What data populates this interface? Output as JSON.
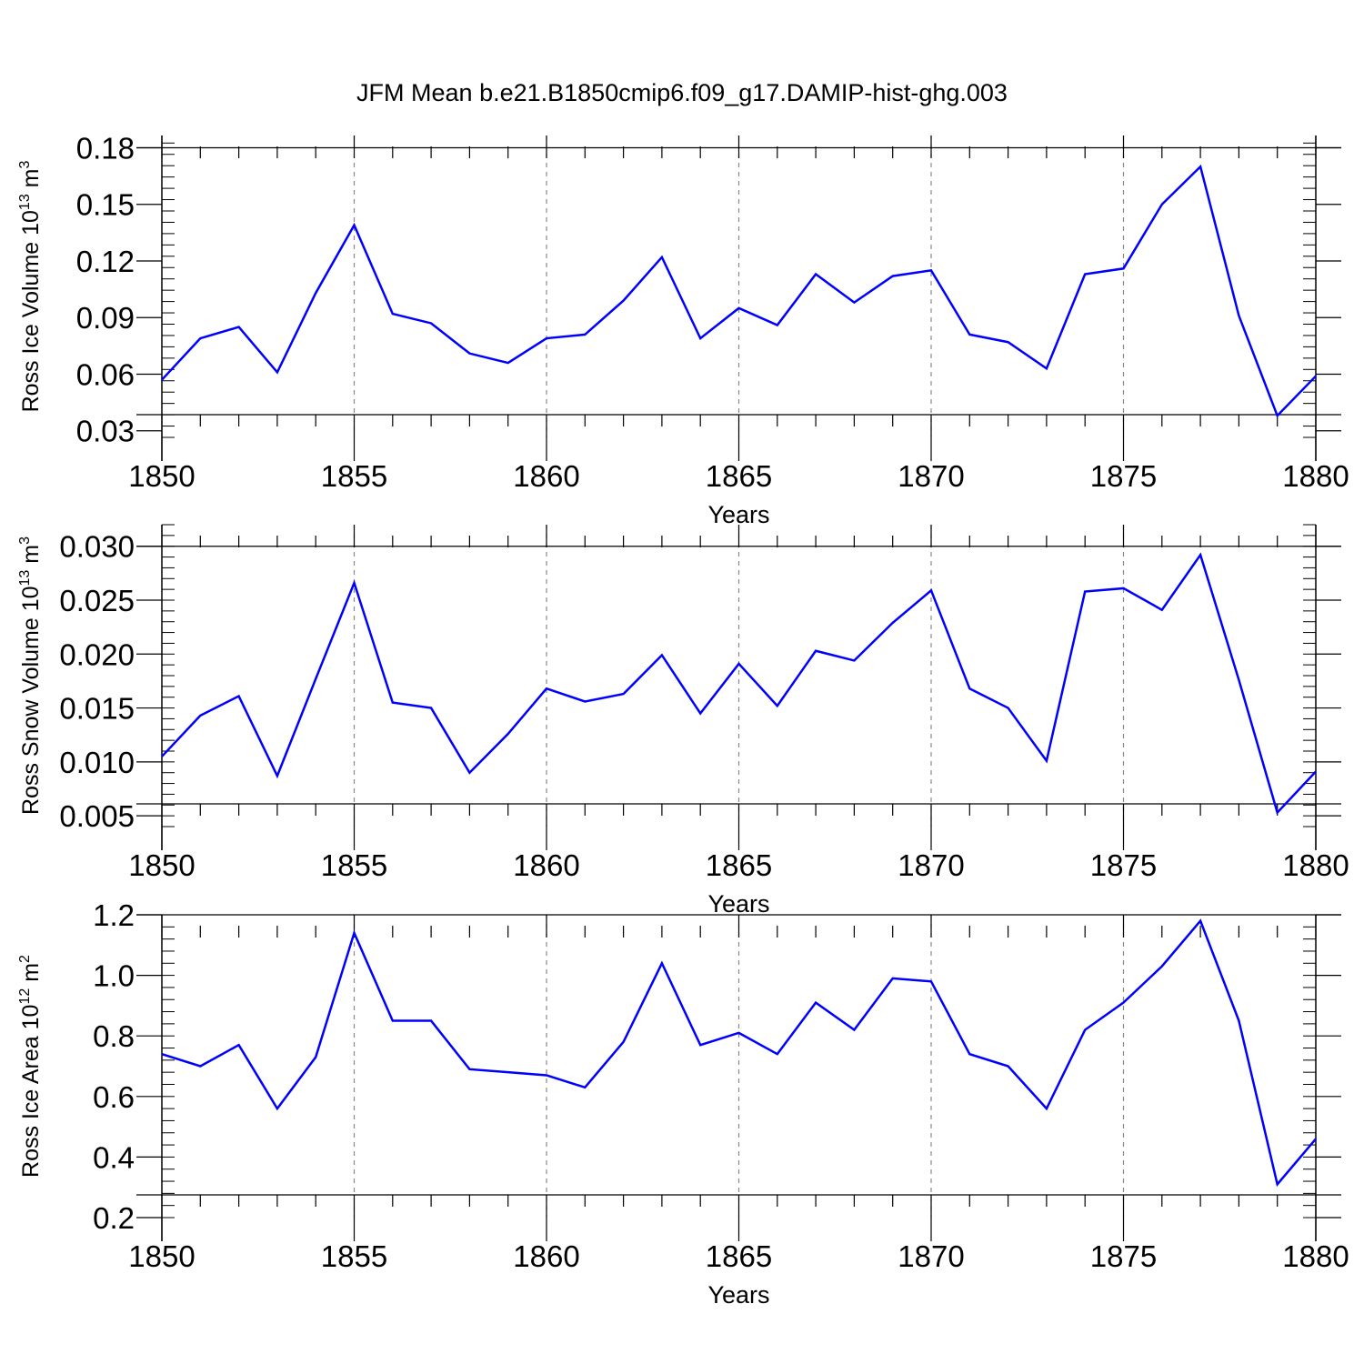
{
  "title": "JFM Mean b.e21.B1850cmip6.f09_g17.DAMIP-hist-ghg.003",
  "colors": {
    "line": "#0000ff",
    "axis": "#000000",
    "grid": "#888888"
  },
  "chart_data": [
    {
      "type": "line",
      "ylabel": {
        "prefix": "Ross Ice Volume 10",
        "exp": "13",
        "unit": " m",
        "unit_exp": "3"
      },
      "xlabel": "Years",
      "xlim": [
        1850,
        1880
      ],
      "x_ticks": [
        "1850",
        "1855",
        "1860",
        "1865",
        "1870",
        "1875",
        "1880"
      ],
      "ylim": [
        0.0265,
        0.1865
      ],
      "y_ticks": [
        "0.03",
        "0.06",
        "0.09",
        "0.12",
        "0.15",
        "0.18"
      ],
      "y_tick_values": [
        0.03,
        0.06,
        0.09,
        0.12,
        0.15,
        0.18
      ],
      "y_minor_step": 0.006,
      "grid": "vertical dashed at major x ticks",
      "series": [
        {
          "name": "Ross Ice Volume",
          "x": [
            1850,
            1851,
            1852,
            1853,
            1854,
            1855,
            1856,
            1857,
            1858,
            1859,
            1860,
            1861,
            1862,
            1863,
            1864,
            1865,
            1866,
            1867,
            1868,
            1869,
            1870,
            1871,
            1872,
            1873,
            1874,
            1875,
            1876,
            1877,
            1878,
            1879,
            1880
          ],
          "values": [
            0.057,
            0.079,
            0.085,
            0.061,
            0.103,
            0.139,
            0.092,
            0.087,
            0.071,
            0.066,
            0.079,
            0.081,
            0.099,
            0.122,
            0.079,
            0.095,
            0.086,
            0.113,
            0.098,
            0.112,
            0.115,
            0.081,
            0.077,
            0.063,
            0.113,
            0.116,
            0.15,
            0.17,
            0.091,
            0.038,
            0.059
          ]
        }
      ]
    },
    {
      "type": "line",
      "ylabel": {
        "prefix": "Ross Snow Volume 10",
        "exp": "13",
        "unit": " m",
        "unit_exp": "3"
      },
      "xlabel": "Years",
      "xlim": [
        1850,
        1880
      ],
      "x_ticks": [
        "1850",
        "1855",
        "1860",
        "1865",
        "1870",
        "1875",
        "1880"
      ],
      "ylim": [
        0.004,
        0.032
      ],
      "y_ticks": [
        "0.005",
        "0.010",
        "0.015",
        "0.020",
        "0.025",
        "0.030"
      ],
      "y_tick_values": [
        0.005,
        0.01,
        0.015,
        0.02,
        0.025,
        0.03
      ],
      "y_minor_step": 0.001,
      "grid": "vertical dashed at major x ticks",
      "series": [
        {
          "name": "Ross Snow Volume",
          "x": [
            1850,
            1851,
            1852,
            1853,
            1854,
            1855,
            1856,
            1857,
            1858,
            1859,
            1860,
            1861,
            1862,
            1863,
            1864,
            1865,
            1866,
            1867,
            1868,
            1869,
            1870,
            1871,
            1872,
            1873,
            1874,
            1875,
            1876,
            1877,
            1878,
            1879,
            1880
          ],
          "values": [
            0.0105,
            0.0143,
            0.0161,
            0.0087,
            0.0177,
            0.0266,
            0.0155,
            0.015,
            0.009,
            0.0126,
            0.0168,
            0.0156,
            0.0163,
            0.0199,
            0.0145,
            0.0191,
            0.0152,
            0.0203,
            0.0194,
            0.0229,
            0.0259,
            0.0168,
            0.015,
            0.0101,
            0.0258,
            0.0261,
            0.0241,
            0.0292,
            0.0176,
            0.0053,
            0.0091
          ]
        }
      ]
    },
    {
      "type": "line",
      "ylabel": {
        "prefix": "Ross Ice Area 10",
        "exp": "12",
        "unit": " m",
        "unit_exp": "2"
      },
      "xlabel": "Years",
      "xlim": [
        1850,
        1880
      ],
      "x_ticks": [
        "1850",
        "1855",
        "1860",
        "1865",
        "1870",
        "1875",
        "1880"
      ],
      "ylim": [
        0.2,
        1.2
      ],
      "y_ticks": [
        "0.2",
        "0.4",
        "0.6",
        "0.8",
        "1.0",
        "1.2"
      ],
      "y_tick_values": [
        0.2,
        0.4,
        0.6,
        0.8,
        1.0,
        1.2
      ],
      "y_minor_step": 0.04,
      "grid": "vertical dashed at major x ticks",
      "series": [
        {
          "name": "Ross Ice Area",
          "x": [
            1850,
            1851,
            1852,
            1853,
            1854,
            1855,
            1856,
            1857,
            1858,
            1859,
            1860,
            1861,
            1862,
            1863,
            1864,
            1865,
            1866,
            1867,
            1868,
            1869,
            1870,
            1871,
            1872,
            1873,
            1874,
            1875,
            1876,
            1877,
            1878,
            1879,
            1880
          ],
          "values": [
            0.74,
            0.7,
            0.77,
            0.56,
            0.73,
            1.14,
            0.85,
            0.85,
            0.69,
            0.68,
            0.67,
            0.63,
            0.78,
            1.04,
            0.77,
            0.81,
            0.74,
            0.91,
            0.82,
            0.99,
            0.98,
            0.74,
            0.7,
            0.56,
            0.82,
            0.91,
            1.03,
            1.18,
            0.85,
            0.31,
            0.46
          ]
        }
      ]
    }
  ]
}
